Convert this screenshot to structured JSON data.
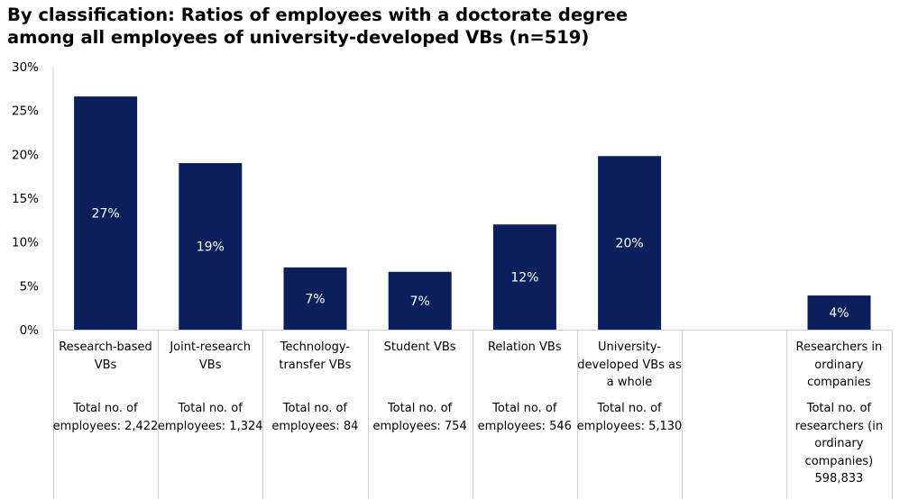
{
  "title": {
    "line1": "By classification: Ratios of employees with a doctorate degree",
    "line2": "among all employees of university-developed VBs (n=519)"
  },
  "colors": {
    "bar": "#0a1f5c",
    "bar_label": "#ffffff",
    "grid_line": "#d0d0d0"
  },
  "chart_data": {
    "type": "bar",
    "title": "By classification: Ratios of employees with a doctorate degree among all employees of university-developed VBs (n=519)",
    "categories": [
      "Research-based VBs",
      "Joint-research VBs",
      "Technology-transfer VBs",
      "Student VBs",
      "Relation VBs",
      "University-developed VBs as a whole",
      "",
      "Researchers in ordinary companies"
    ],
    "values": [
      26.6,
      19.0,
      7.1,
      6.6,
      12.0,
      19.8,
      null,
      3.9
    ],
    "data_labels": [
      "27%",
      "19%",
      "7%",
      "7%",
      "12%",
      "20%",
      "",
      "4%"
    ],
    "notes": [
      "Total no. of employees: 2,422",
      "Total no. of employees: 1,324",
      "Total no. of employees: 84",
      "Total no. of employees: 754",
      "Total no. of employees: 546",
      "Total no. of employees: 5,130",
      "",
      "Total no. of researchers (in ordinary companies) 598,833"
    ],
    "ylim": [
      0,
      30
    ],
    "yticks": [
      "0%",
      "5%",
      "10%",
      "15%",
      "20%",
      "25%",
      "30%"
    ],
    "ytick_values": [
      0,
      5,
      10,
      15,
      20,
      25,
      30
    ],
    "xlabel": "",
    "ylabel": "",
    "grid": false,
    "legend": "none"
  },
  "categories_display": [
    {
      "name": "Research-based\nVBs",
      "note": "Total no. of\nemployees: 2,422"
    },
    {
      "name": "Joint-research\nVBs",
      "note": "Total no. of\nemployees: 1,324"
    },
    {
      "name": "Technology-\ntransfer VBs",
      "note": "Total no. of\nemployees: 84"
    },
    {
      "name": "Student VBs",
      "note": "Total no. of\nemployees: 754"
    },
    {
      "name": "Relation VBs",
      "note": "Total no. of\nemployees: 546"
    },
    {
      "name": "University-\ndeveloped VBs as\na whole",
      "note": "Total no. of\nemployees: 5,130"
    },
    {
      "name": "",
      "note": ""
    },
    {
      "name": "Researchers in\nordinary\ncompanies",
      "note": "Total no. of\nresearchers (in\nordinary\ncompanies)\n598,833"
    }
  ]
}
